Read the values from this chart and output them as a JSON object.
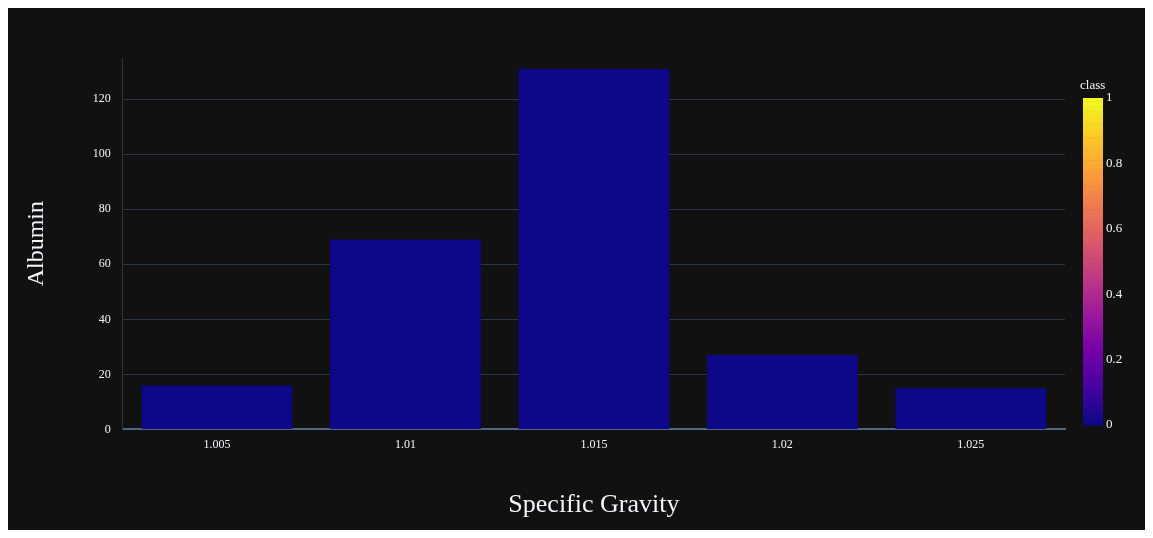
{
  "chart_data": {
    "type": "bar",
    "xlabel": "Specific Gravity",
    "ylabel": "Albumin",
    "categories": [
      "1.005",
      "1.01",
      "1.015",
      "1.02",
      "1.025"
    ],
    "values": [
      16,
      69,
      131,
      27,
      15
    ],
    "cvalues": [
      0,
      0,
      0,
      0,
      0
    ],
    "clabel": "class",
    "clim": [
      0,
      1
    ],
    "cticks": [
      0,
      0.2,
      0.4,
      0.6,
      0.8,
      1
    ],
    "ylim": [
      0,
      135
    ],
    "yticks": [
      0,
      20,
      40,
      60,
      80,
      100,
      120
    ],
    "grid": "y"
  }
}
